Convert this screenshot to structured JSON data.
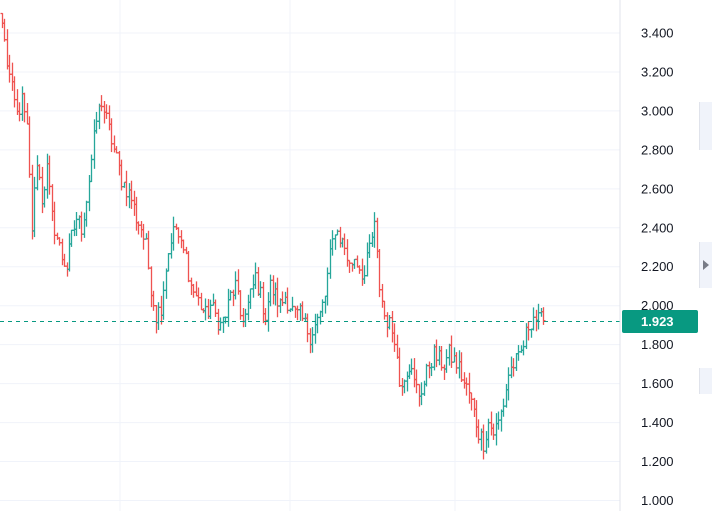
{
  "colors": {
    "up": "#26a69a",
    "down": "#ef5350",
    "grid": "#f0f3fa",
    "axis_text": "#131722",
    "last_price_line": "#089981",
    "last_price_tag": "#089981",
    "background": "#ffffff"
  },
  "side_handle_icon": "chevron-right-icon",
  "chart_data": {
    "type": "ohlc",
    "ylim": [
      1.0,
      3.5
    ],
    "y_ticks": [
      "1.000",
      "1.200",
      "1.400",
      "1.600",
      "1.800",
      "2.000",
      "2.200",
      "2.400",
      "2.600",
      "2.800",
      "3.000",
      "3.200",
      "3.400"
    ],
    "y_tick_values": [
      1.0,
      1.2,
      1.4,
      1.6,
      1.8,
      2.0,
      2.2,
      2.4,
      2.6,
      2.8,
      3.0,
      3.2,
      3.4
    ],
    "last_price": 1.923,
    "last_price_label": "1.923",
    "grid": true,
    "close_path": [
      3.45,
      3.25,
      3.1,
      2.98,
      3.05,
      2.9,
      2.4,
      2.75,
      2.55,
      2.7,
      2.45,
      2.35,
      2.25,
      2.2,
      2.35,
      2.45,
      2.4,
      2.55,
      2.75,
      2.95,
      3.05,
      2.95,
      2.85,
      2.75,
      2.65,
      2.6,
      2.55,
      2.45,
      2.4,
      2.3,
      2.1,
      1.95,
      2.0,
      2.2,
      2.35,
      2.4,
      2.3,
      2.25,
      2.1,
      2.05,
      2.0,
      1.95,
      2.0,
      1.95,
      1.9,
      1.95,
      2.05,
      2.1,
      1.95,
      1.95,
      2.05,
      2.15,
      2.05,
      1.95,
      2.1,
      2.05,
      2.0,
      2.05,
      2.0,
      1.95,
      1.95,
      1.9,
      1.85,
      1.9,
      1.95,
      2.05,
      2.25,
      2.4,
      2.35,
      2.3,
      2.2,
      2.25,
      2.2,
      2.15,
      2.3,
      2.4,
      2.1,
      1.95,
      1.9,
      1.85,
      1.6,
      1.65,
      1.7,
      1.6,
      1.55,
      1.6,
      1.7,
      1.75,
      1.72,
      1.7,
      1.75,
      1.72,
      1.68,
      1.6,
      1.55,
      1.45,
      1.35,
      1.3,
      1.4,
      1.35,
      1.4,
      1.5,
      1.65,
      1.7,
      1.72,
      1.8,
      1.9,
      1.95,
      1.92,
      1.923
    ]
  }
}
